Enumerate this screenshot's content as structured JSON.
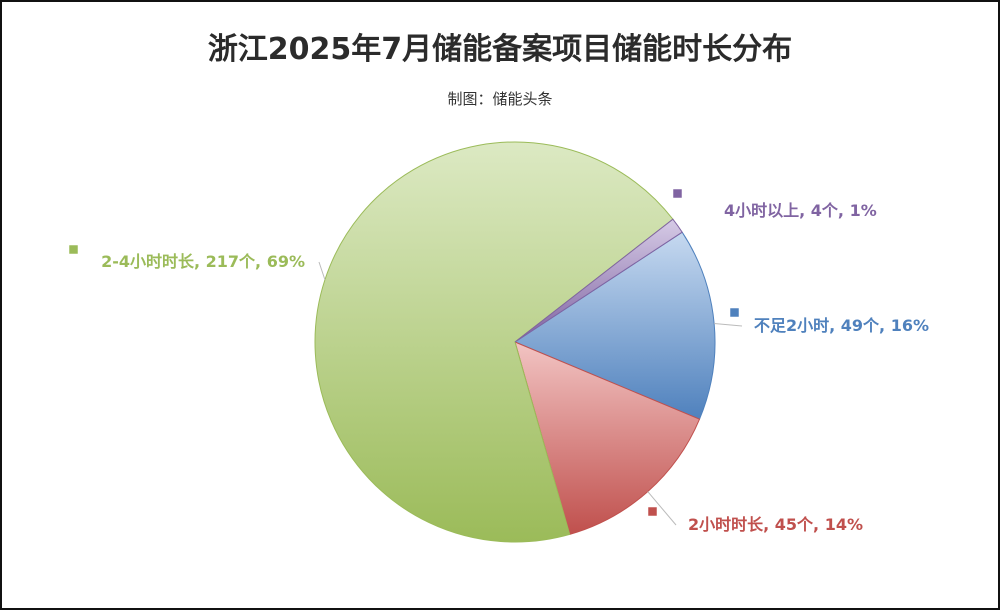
{
  "chart_data": {
    "type": "pie",
    "title": "浙江2025年7月储能备案项目储能时长分布",
    "subtitle": "制图：储能头条",
    "slices": [
      {
        "category": "不足2小时",
        "value": 49,
        "percent": 16,
        "label": "不足2小时, 49个, 16%",
        "color": "#4f81bd",
        "light": "#c6d9f0"
      },
      {
        "category": "2小时时长",
        "value": 45,
        "percent": 14,
        "label": "2小时时长, 45个, 14%",
        "color": "#c0504d",
        "light": "#f2c4c3"
      },
      {
        "category": "2-4小时时长",
        "value": 217,
        "percent": 69,
        "label": "2-4小时时长, 217个, 69%",
        "color": "#9bbb59",
        "light": "#dce9c3"
      },
      {
        "category": "4小时以上",
        "value": 4,
        "percent": 1,
        "label": "4小时以上, 4个, 1%",
        "color": "#8064a2",
        "light": "#d6cbe6"
      }
    ],
    "legend": "none",
    "data_labels": "outside"
  }
}
